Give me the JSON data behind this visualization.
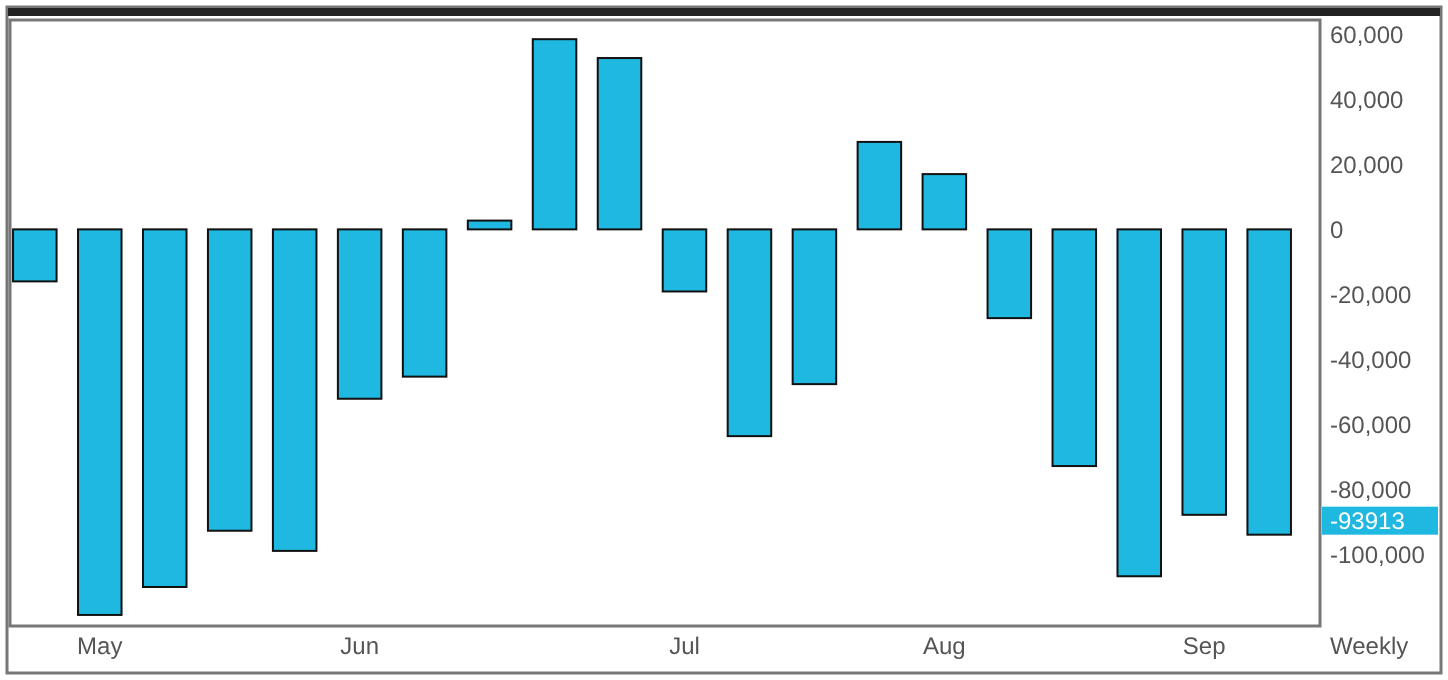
{
  "chart_data": {
    "type": "bar",
    "xlabel": "Weekly",
    "categories": [
      null,
      "May",
      null,
      null,
      null,
      "Jun",
      null,
      null,
      null,
      null,
      "Jul",
      null,
      null,
      null,
      "Aug",
      null,
      null,
      null,
      "Sep",
      null
    ],
    "values": [
      -16000,
      -118600,
      -110000,
      -92700,
      -98900,
      -52100,
      -45300,
      2700,
      58500,
      52700,
      -19100,
      -63600,
      -47600,
      26900,
      17000,
      -27300,
      -72800,
      -106700,
      -87800,
      -93913
    ],
    "color": "#1fb8e0",
    "ylim": [
      -122000,
      64400
    ],
    "yticks": [
      {
        "value": 60000,
        "label": "60,000"
      },
      {
        "value": 40000,
        "label": "40,000"
      },
      {
        "value": 20000,
        "label": "20,000"
      },
      0,
      {
        "value": -20000,
        "label": "-20,000"
      },
      {
        "value": -40000,
        "label": "-40,000"
      },
      {
        "value": -60000,
        "label": "-60,000"
      },
      {
        "value": -80000,
        "label": "-80,000"
      },
      {
        "value": -100000,
        "label": "-100,000"
      }
    ],
    "grid": false,
    "annotations": [
      "-93913"
    ]
  }
}
